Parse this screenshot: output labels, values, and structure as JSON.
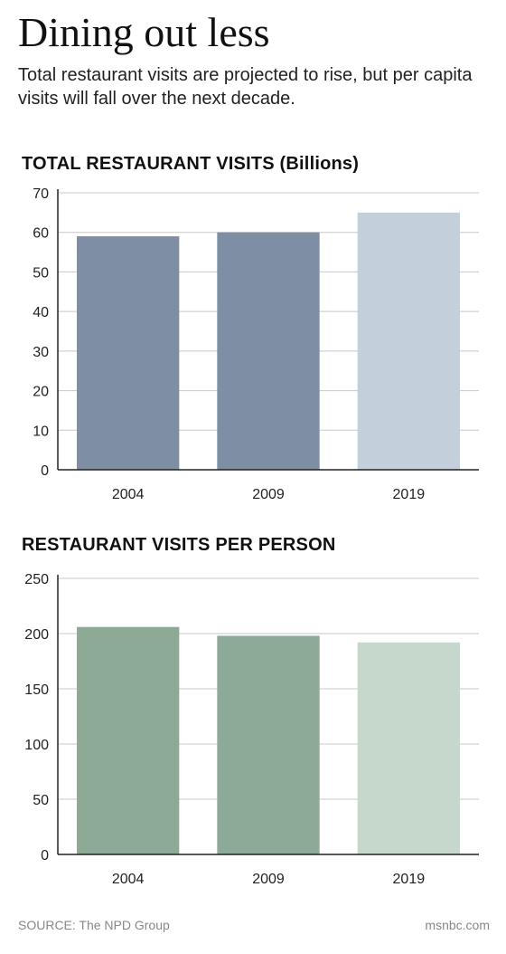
{
  "title": "Dining out less",
  "subtitle": "Total restaurant visits are projected to rise, but per capita visits will fall over the next decade.",
  "source": "SOURCE: The NPD Group",
  "credit": "msnbc.com",
  "chart_data": [
    {
      "type": "bar",
      "title": "TOTAL RESTAURANT VISITS (Billions)",
      "categories": [
        "2004",
        "2009",
        "2019"
      ],
      "values": [
        59,
        60,
        65
      ],
      "ylim": [
        0,
        70
      ],
      "yticks": [
        0,
        10,
        20,
        30,
        40,
        50,
        60,
        70
      ],
      "xlabel": "",
      "ylabel": "",
      "grid": true,
      "colors": [
        "#7d8ea5",
        "#7d8ea5",
        "#c3d0dc"
      ]
    },
    {
      "type": "bar",
      "title": "RESTAURANT VISITS PER PERSON",
      "categories": [
        "2004",
        "2009",
        "2019"
      ],
      "values": [
        206,
        198,
        192
      ],
      "ylim": [
        0,
        250
      ],
      "yticks": [
        0,
        50,
        100,
        150,
        200,
        250
      ],
      "xlabel": "",
      "ylabel": "",
      "grid": true,
      "colors": [
        "#8daa96",
        "#8daa96",
        "#c6d8cc"
      ]
    }
  ]
}
